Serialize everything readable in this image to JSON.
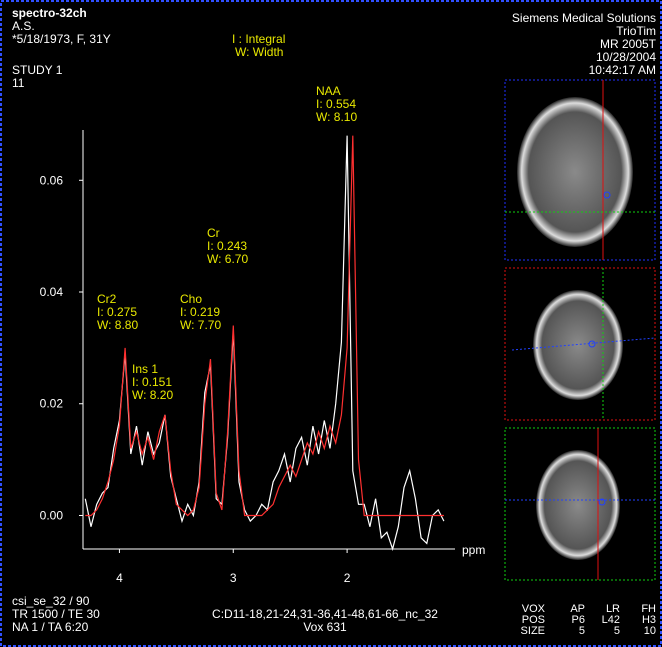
{
  "header": {
    "sequence": "spectro-32ch",
    "patient": "A.S.",
    "birth": "*5/18/1973, F, 31Y",
    "study": "STUDY 1",
    "series_no": "11",
    "legend": [
      "I : Integral",
      "W: Width"
    ],
    "institution": [
      "Siemens Medical Solutions",
      "TrioTim",
      "MR 2005T",
      "10/28/2004",
      "10:42:17 AM"
    ]
  },
  "footer": {
    "left": [
      "csi_se_32 / 90",
      "TR 1500 / TE 30",
      "NA 1 / TA 6:20"
    ],
    "center": [
      "C:D11-18,21-24,31-36,41-48,61-66_nc_32",
      "Vox 631"
    ],
    "voxel_table": [
      [
        "VOX",
        "AP",
        "LR",
        "FH"
      ],
      [
        "POS",
        "P6",
        "L42",
        "H3"
      ],
      [
        "SIZE",
        "5",
        "5",
        "10"
      ]
    ]
  },
  "peaks": [
    {
      "name": "NAA",
      "integral": "I: 0.554",
      "width": "W: 8.10"
    },
    {
      "name": "Cr",
      "integral": "I: 0.243",
      "width": "W: 6.70"
    },
    {
      "name": "Cr2",
      "integral": "I: 0.275",
      "width": "W: 8.80"
    },
    {
      "name": "Cho",
      "integral": "I: 0.219",
      "width": "W: 7.70"
    },
    {
      "name": "Ins 1",
      "integral": "I: 0.151",
      "width": "W: 8.20"
    }
  ],
  "chart_data": {
    "type": "line",
    "x_label": "ppm",
    "x": [
      4.3,
      4.25,
      4.2,
      4.15,
      4.1,
      4.05,
      4.0,
      3.95,
      3.9,
      3.85,
      3.8,
      3.75,
      3.7,
      3.65,
      3.6,
      3.55,
      3.5,
      3.45,
      3.4,
      3.35,
      3.3,
      3.25,
      3.2,
      3.15,
      3.1,
      3.05,
      3.0,
      2.95,
      2.9,
      2.85,
      2.8,
      2.75,
      2.7,
      2.65,
      2.6,
      2.55,
      2.5,
      2.45,
      2.4,
      2.35,
      2.3,
      2.25,
      2.2,
      2.15,
      2.1,
      2.05,
      2.0,
      1.95,
      1.9,
      1.85,
      1.8,
      1.75,
      1.7,
      1.65,
      1.6,
      1.55,
      1.5,
      1.45,
      1.4,
      1.35,
      1.3,
      1.25,
      1.2,
      1.15
    ],
    "series": [
      {
        "color": "#ffffff",
        "values": [
          0.003,
          -0.002,
          0.002,
          0.004,
          0.005,
          0.012,
          0.017,
          0.029,
          0.011,
          0.016,
          0.009,
          0.015,
          0.011,
          0.013,
          0.018,
          0.007,
          0.003,
          -0.001,
          0.002,
          0.0,
          0.006,
          0.022,
          0.027,
          0.003,
          0.002,
          0.014,
          0.033,
          0.006,
          0.001,
          -0.001,
          0.0,
          0.002,
          0.001,
          0.006,
          0.008,
          0.011,
          0.006,
          0.012,
          0.014,
          0.009,
          0.016,
          0.011,
          0.017,
          0.012,
          0.02,
          0.031,
          0.068,
          0.008,
          0.002,
          0.002,
          -0.002,
          0.003,
          -0.004,
          -0.003,
          -0.006,
          -0.002,
          0.005,
          0.008,
          0.003,
          -0.004,
          -0.005,
          0.0,
          0.001,
          -0.001
        ]
      },
      {
        "color": "#ff3030",
        "values": [
          0.0,
          0.0,
          0.001,
          0.003,
          0.006,
          0.01,
          0.016,
          0.03,
          0.012,
          0.015,
          0.011,
          0.014,
          0.01,
          0.015,
          0.018,
          0.008,
          0.002,
          0.001,
          0.0,
          0.001,
          0.005,
          0.02,
          0.028,
          0.004,
          0.001,
          0.015,
          0.034,
          0.008,
          0.0,
          0.0,
          0.0,
          0.0,
          0.001,
          0.002,
          0.005,
          0.007,
          0.009,
          0.007,
          0.01,
          0.013,
          0.011,
          0.015,
          0.012,
          0.016,
          0.013,
          0.018,
          0.03,
          0.068,
          0.01,
          0.0,
          0.0,
          0.0,
          0.0,
          0.0,
          0.0,
          0.0,
          0.0,
          0.0,
          0.0,
          0.0,
          0.0,
          0.0,
          0.0,
          0.0
        ]
      }
    ],
    "xlim": [
      4.32,
      1.14
    ],
    "xticks": [
      4,
      3,
      2
    ],
    "ylim": [
      -0.006,
      0.069
    ],
    "yticks": [
      {
        "value": 0,
        "label": "0.00"
      },
      {
        "value": 0.02,
        "label": "0.02"
      },
      {
        "value": 0.04,
        "label": "0.04"
      },
      {
        "value": 0.06,
        "label": "0.06"
      }
    ]
  }
}
